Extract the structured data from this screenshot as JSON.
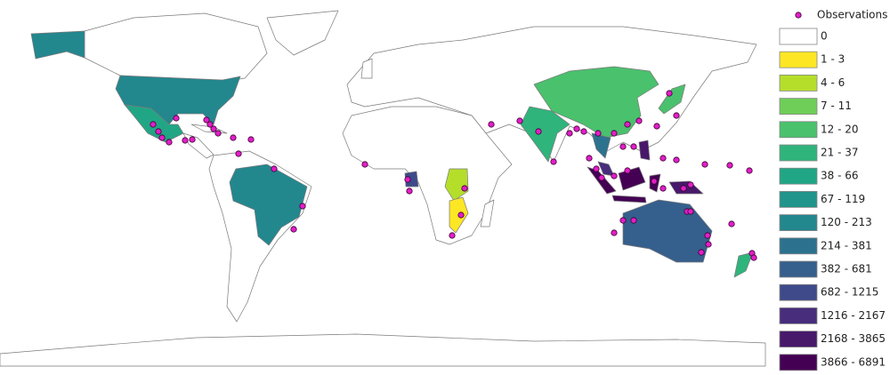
{
  "legend": {
    "marker_label": "Observations",
    "marker_color": "#e21ec8",
    "classes": [
      {
        "label": "0",
        "color": "#ffffff"
      },
      {
        "label": "1 - 3",
        "color": "#fde725"
      },
      {
        "label": "4 - 6",
        "color": "#b5de2b"
      },
      {
        "label": "7 - 11",
        "color": "#6ece58"
      },
      {
        "label": "12 - 20",
        "color": "#4ac16d"
      },
      {
        "label": "21 - 37",
        "color": "#2fb47c"
      },
      {
        "label": "38 - 66",
        "color": "#21a685"
      },
      {
        "label": "67 - 119",
        "color": "#20958b"
      },
      {
        "label": "120 - 213",
        "color": "#23878e"
      },
      {
        "label": "214 - 381",
        "color": "#2c728e"
      },
      {
        "label": "382 - 681",
        "color": "#355f8d"
      },
      {
        "label": "682 - 1215",
        "color": "#3e4a89"
      },
      {
        "label": "1216 - 2167",
        "color": "#472d7b"
      },
      {
        "label": "2168 - 3865",
        "color": "#48186a"
      },
      {
        "label": "3866 - 6891",
        "color": "#440154"
      }
    ]
  }
}
